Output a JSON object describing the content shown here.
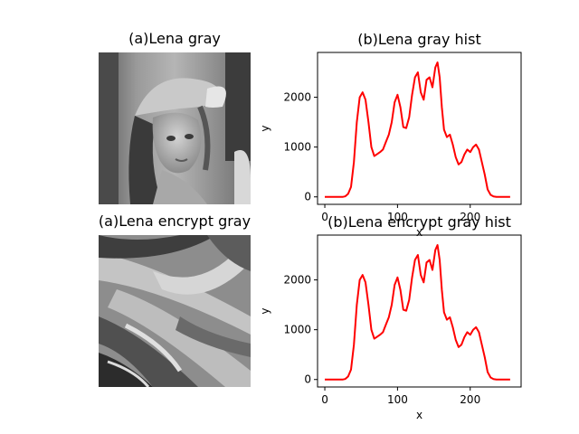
{
  "panels": {
    "top_left_title": "(a)Lena gray",
    "bottom_left_title": "(a)Lena encrypt gray"
  },
  "colors": {
    "line": "#ff0000"
  },
  "chart_data": [
    {
      "type": "line",
      "title": "(b)Lena gray hist",
      "xlabel": "x",
      "ylabel": "y",
      "xlim": [
        -10,
        270
      ],
      "ylim": [
        -150,
        2900
      ],
      "xticks": [
        0,
        100,
        200
      ],
      "yticks": [
        0,
        1000,
        2000
      ],
      "grid": false,
      "series": [
        {
          "x": [
            0,
            25,
            28,
            32,
            36,
            40,
            44,
            48,
            52,
            56,
            60,
            64,
            68,
            72,
            76,
            80,
            84,
            88,
            92,
            96,
            100,
            104,
            108,
            112,
            116,
            120,
            124,
            128,
            132,
            136,
            140,
            144,
            148,
            152,
            155,
            158,
            161,
            164,
            168,
            172,
            176,
            180,
            184,
            188,
            192,
            196,
            200,
            204,
            208,
            212,
            216,
            220,
            224,
            228,
            232,
            236,
            240,
            255
          ],
          "y": [
            0,
            0,
            10,
            60,
            200,
            700,
            1500,
            2000,
            2100,
            1950,
            1500,
            1000,
            820,
            860,
            900,
            950,
            1100,
            1250,
            1500,
            1900,
            2050,
            1800,
            1400,
            1380,
            1600,
            2050,
            2400,
            2500,
            2100,
            1950,
            2350,
            2400,
            2200,
            2600,
            2700,
            2400,
            1800,
            1350,
            1200,
            1250,
            1050,
            800,
            650,
            700,
            850,
            950,
            900,
            1000,
            1050,
            950,
            700,
            450,
            150,
            40,
            10,
            0,
            0,
            0
          ]
        }
      ]
    },
    {
      "type": "line",
      "title": "(b)Lena encrypt gray hist",
      "xlabel": "x",
      "ylabel": "y",
      "xlim": [
        -10,
        270
      ],
      "ylim": [
        -150,
        2900
      ],
      "xticks": [
        0,
        100,
        200
      ],
      "yticks": [
        0,
        1000,
        2000
      ],
      "grid": false,
      "series": [
        {
          "x": [
            0,
            25,
            28,
            32,
            36,
            40,
            44,
            48,
            52,
            56,
            60,
            64,
            68,
            72,
            76,
            80,
            84,
            88,
            92,
            96,
            100,
            104,
            108,
            112,
            116,
            120,
            124,
            128,
            132,
            136,
            140,
            144,
            148,
            152,
            155,
            158,
            161,
            164,
            168,
            172,
            176,
            180,
            184,
            188,
            192,
            196,
            200,
            204,
            208,
            212,
            216,
            220,
            224,
            228,
            232,
            236,
            240,
            255
          ],
          "y": [
            0,
            0,
            10,
            60,
            200,
            700,
            1500,
            2000,
            2100,
            1950,
            1500,
            1000,
            820,
            860,
            900,
            950,
            1100,
            1250,
            1500,
            1900,
            2050,
            1800,
            1400,
            1380,
            1600,
            2050,
            2400,
            2500,
            2100,
            1950,
            2350,
            2400,
            2200,
            2600,
            2700,
            2400,
            1800,
            1350,
            1200,
            1250,
            1050,
            800,
            650,
            700,
            850,
            950,
            900,
            1000,
            1050,
            950,
            700,
            450,
            150,
            40,
            10,
            0,
            0,
            0
          ]
        }
      ]
    }
  ]
}
